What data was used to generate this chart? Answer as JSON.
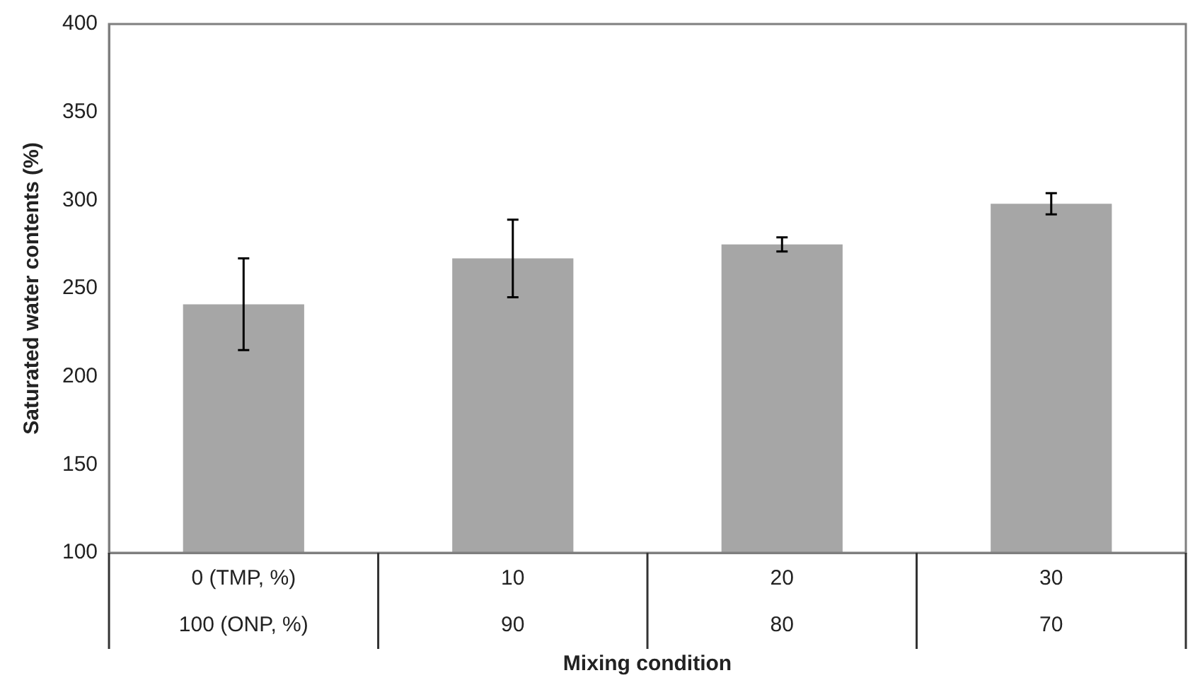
{
  "chart_data": {
    "type": "bar",
    "xlabel": "Mixing condition",
    "ylabel": "Saturated water contents (%)",
    "categories": [
      "0 (TMP, %)\n100 (ONP, %)",
      "10\n90",
      "20\n80",
      "30\n70"
    ],
    "values": [
      241,
      267,
      275,
      298
    ],
    "errors": [
      26,
      22,
      4,
      6
    ],
    "color": "#a6a6a6",
    "ylim": [
      100,
      400
    ],
    "yticks": [
      100,
      150,
      200,
      250,
      300,
      350,
      400
    ],
    "grid": false,
    "legend": false
  }
}
